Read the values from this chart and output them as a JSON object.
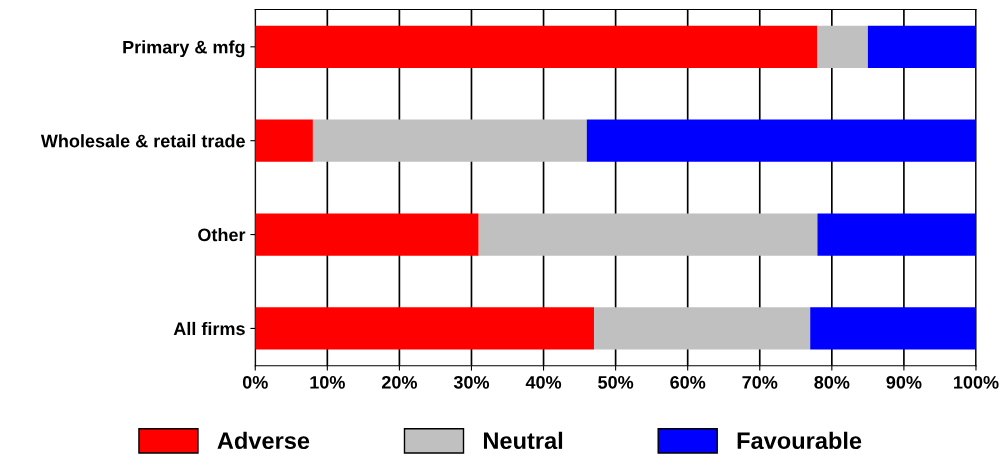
{
  "chart_data": {
    "type": "bar",
    "orientation": "horizontal",
    "stacked": true,
    "categories": [
      "Primary & mfg",
      "Wholesale & retail trade",
      "Other",
      "All firms"
    ],
    "series": [
      {
        "name": "Adverse",
        "color": "#ff0000",
        "values": [
          78,
          8,
          31,
          47
        ]
      },
      {
        "name": "Neutral",
        "color": "#c0c0c0",
        "values": [
          7,
          38,
          47,
          30
        ]
      },
      {
        "name": "Favourable",
        "color": "#0000ff",
        "values": [
          15,
          54,
          22,
          23
        ]
      }
    ],
    "xlim": [
      0,
      100
    ],
    "xticks": [
      {
        "value": 0,
        "label": "0%"
      },
      {
        "value": 10,
        "label": "10%"
      },
      {
        "value": 20,
        "label": "20%"
      },
      {
        "value": 30,
        "label": "30%"
      },
      {
        "value": 40,
        "label": "40%"
      },
      {
        "value": 50,
        "label": "50%"
      },
      {
        "value": 60,
        "label": "60%"
      },
      {
        "value": 70,
        "label": "70%"
      },
      {
        "value": 80,
        "label": "80%"
      },
      {
        "value": 90,
        "label": "90%"
      },
      {
        "value": 100,
        "label": "100%"
      }
    ],
    "grid": "x",
    "legend": "bottom"
  }
}
